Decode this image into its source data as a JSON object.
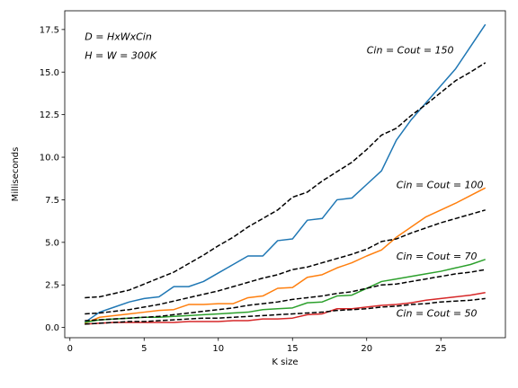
{
  "chart_data": {
    "type": "line",
    "xlabel": "K size",
    "ylabel": "Milliseconds",
    "xlim": [
      -0.35,
      29.35
    ],
    "ylim": [
      -0.6,
      18.6
    ],
    "xticks": [
      0,
      5,
      10,
      15,
      20,
      25
    ],
    "yticks": [
      0.0,
      2.5,
      5.0,
      7.5,
      10.0,
      12.5,
      15.0,
      17.5
    ],
    "grid": false,
    "annotations": [
      {
        "text": "D = HxWxCin",
        "x": 1.0,
        "y": 17.1
      },
      {
        "text": "H = W = 300K",
        "x": 1.0,
        "y": 16.0
      },
      {
        "text": "Cin = Cout = 150",
        "x": 20.0,
        "y": 16.3
      },
      {
        "text": "Cin = Cout = 100",
        "x": 22.0,
        "y": 8.4
      },
      {
        "text": "Cin = Cout = 70",
        "x": 22.0,
        "y": 4.2
      },
      {
        "text": "Cin = Cout = 50",
        "x": 22.0,
        "y": 0.85
      }
    ],
    "series": [
      {
        "color": "#1f77b4",
        "style": "solid",
        "x": [
          1,
          2,
          3,
          4,
          5,
          6,
          7,
          8,
          9,
          10,
          11,
          12,
          13,
          14,
          15,
          16,
          17,
          18,
          19,
          20,
          21,
          22,
          23,
          24,
          25,
          26,
          27,
          28
        ],
        "y": [
          0.3,
          0.9,
          1.2,
          1.5,
          1.7,
          1.8,
          2.4,
          2.4,
          2.7,
          3.2,
          3.7,
          4.2,
          4.2,
          5.1,
          5.2,
          6.3,
          6.4,
          7.5,
          7.6,
          8.4,
          9.2,
          11.0,
          12.2,
          13.2,
          14.2,
          15.2,
          16.5,
          17.8
        ]
      },
      {
        "color": "#ff7f0e",
        "style": "solid",
        "x": [
          1,
          2,
          3,
          4,
          5,
          6,
          7,
          8,
          9,
          10,
          11,
          12,
          13,
          14,
          15,
          16,
          17,
          18,
          19,
          20,
          21,
          22,
          23,
          24,
          25,
          26,
          27,
          28
        ],
        "y": [
          0.25,
          0.6,
          0.7,
          0.8,
          0.9,
          1.0,
          1.05,
          1.35,
          1.35,
          1.4,
          1.4,
          1.75,
          1.85,
          2.3,
          2.35,
          2.95,
          3.1,
          3.5,
          3.8,
          4.2,
          4.55,
          5.3,
          5.9,
          6.5,
          6.9,
          7.3,
          7.75,
          8.2
        ]
      },
      {
        "color": "#2ca02c",
        "style": "solid",
        "x": [
          1,
          2,
          3,
          4,
          5,
          6,
          7,
          8,
          9,
          10,
          11,
          12,
          13,
          14,
          15,
          16,
          17,
          18,
          19,
          20,
          21,
          22,
          23,
          24,
          25,
          26,
          27,
          28
        ],
        "y": [
          0.3,
          0.45,
          0.5,
          0.55,
          0.6,
          0.6,
          0.65,
          0.7,
          0.75,
          0.8,
          0.85,
          0.9,
          1.05,
          1.1,
          1.15,
          1.45,
          1.5,
          1.85,
          1.9,
          2.3,
          2.7,
          2.85,
          3.0,
          3.15,
          3.3,
          3.5,
          3.7,
          4.0
        ]
      },
      {
        "color": "#d62728",
        "style": "solid",
        "x": [
          1,
          2,
          3,
          4,
          5,
          6,
          7,
          8,
          9,
          10,
          11,
          12,
          13,
          14,
          15,
          16,
          17,
          18,
          19,
          20,
          21,
          22,
          23,
          24,
          25,
          26,
          27,
          28
        ],
        "y": [
          0.2,
          0.25,
          0.3,
          0.3,
          0.3,
          0.3,
          0.3,
          0.35,
          0.35,
          0.35,
          0.4,
          0.4,
          0.5,
          0.5,
          0.55,
          0.75,
          0.8,
          1.1,
          1.1,
          1.2,
          1.3,
          1.35,
          1.45,
          1.6,
          1.7,
          1.8,
          1.9,
          2.05
        ]
      },
      {
        "color": "#000000",
        "style": "dashed",
        "x": [
          1,
          2,
          3,
          4,
          5,
          6,
          7,
          8,
          9,
          10,
          11,
          12,
          13,
          14,
          15,
          16,
          17,
          18,
          19,
          20,
          21,
          22,
          23,
          24,
          25,
          26,
          27,
          28
        ],
        "y": [
          1.75,
          1.8,
          2.0,
          2.2,
          2.55,
          2.9,
          3.25,
          3.75,
          4.25,
          4.8,
          5.3,
          5.9,
          6.4,
          6.9,
          7.65,
          7.95,
          8.6,
          9.15,
          9.7,
          10.45,
          11.3,
          11.7,
          12.45,
          13.1,
          13.8,
          14.5,
          15.0,
          15.55
        ]
      },
      {
        "color": "#000000",
        "style": "dashed",
        "x": [
          1,
          2,
          3,
          4,
          5,
          6,
          7,
          8,
          9,
          10,
          11,
          12,
          13,
          14,
          15,
          16,
          17,
          18,
          19,
          20,
          21,
          22,
          23,
          24,
          25,
          26,
          27,
          28
        ],
        "y": [
          0.8,
          0.85,
          0.95,
          1.05,
          1.2,
          1.35,
          1.55,
          1.75,
          1.95,
          2.15,
          2.4,
          2.65,
          2.9,
          3.1,
          3.4,
          3.55,
          3.8,
          4.05,
          4.3,
          4.6,
          5.05,
          5.2,
          5.55,
          5.85,
          6.15,
          6.4,
          6.65,
          6.9
        ]
      },
      {
        "color": "#000000",
        "style": "dashed",
        "x": [
          1,
          2,
          3,
          4,
          5,
          6,
          7,
          8,
          9,
          10,
          11,
          12,
          13,
          14,
          15,
          16,
          17,
          18,
          19,
          20,
          21,
          22,
          23,
          24,
          25,
          26,
          27,
          28
        ],
        "y": [
          0.4,
          0.45,
          0.5,
          0.55,
          0.6,
          0.65,
          0.75,
          0.85,
          0.95,
          1.05,
          1.15,
          1.3,
          1.4,
          1.5,
          1.65,
          1.75,
          1.85,
          2.0,
          2.1,
          2.3,
          2.5,
          2.55,
          2.7,
          2.85,
          3.0,
          3.15,
          3.25,
          3.4
        ]
      },
      {
        "color": "#000000",
        "style": "dashed",
        "x": [
          1,
          2,
          3,
          4,
          5,
          6,
          7,
          8,
          9,
          10,
          11,
          12,
          13,
          14,
          15,
          16,
          17,
          18,
          19,
          20,
          21,
          22,
          23,
          24,
          25,
          26,
          27,
          28
        ],
        "y": [
          0.2,
          0.25,
          0.3,
          0.35,
          0.35,
          0.4,
          0.45,
          0.5,
          0.55,
          0.55,
          0.6,
          0.65,
          0.7,
          0.75,
          0.8,
          0.85,
          0.9,
          1.0,
          1.05,
          1.1,
          1.2,
          1.25,
          1.35,
          1.4,
          1.5,
          1.55,
          1.6,
          1.7
        ]
      }
    ]
  }
}
